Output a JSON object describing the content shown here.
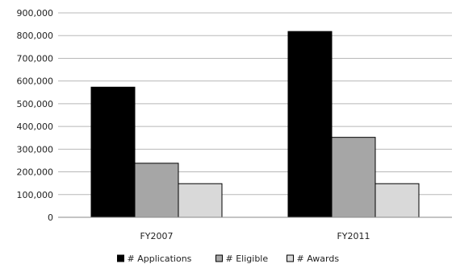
{
  "chart_data": {
    "type": "bar",
    "categories": [
      "FY2007",
      "FY2011"
    ],
    "series": [
      {
        "name": "# Applications",
        "values": [
          573000,
          818000
        ],
        "color": "#000000"
      },
      {
        "name": "# Eligible",
        "values": [
          238000,
          352000
        ],
        "color": "#a6a6a6"
      },
      {
        "name": "# Awards",
        "values": [
          148000,
          148000
        ],
        "color": "#d9d9d9"
      }
    ],
    "y_ticks": [
      "0",
      "100,000",
      "200,000",
      "300,000",
      "400,000",
      "500,000",
      "600,000",
      "700,000",
      "800,000",
      "900,000"
    ],
    "ylim": [
      0,
      900000
    ],
    "grid": true,
    "legend_position": "bottom"
  }
}
